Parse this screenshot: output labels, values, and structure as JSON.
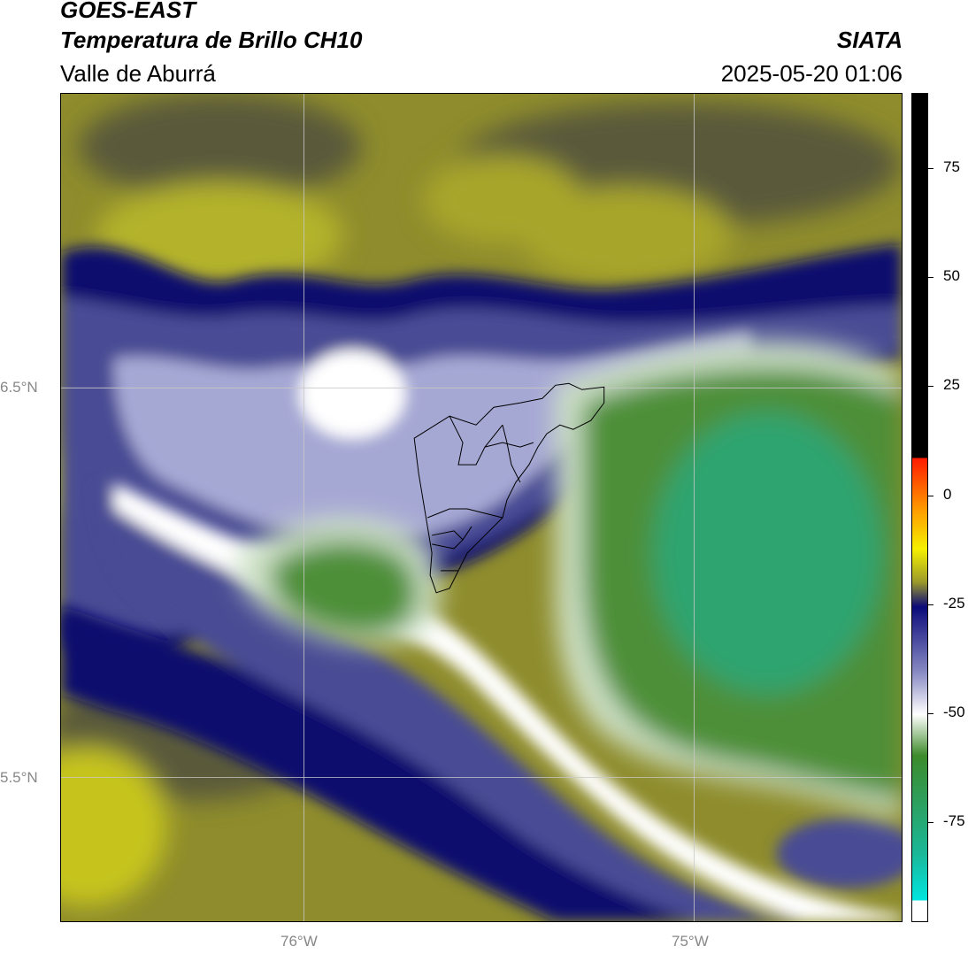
{
  "header": {
    "satellite": "GOES-EAST",
    "product": "Temperatura de Brillo CH10",
    "region": "Valle de Aburrá",
    "agency": "SIATA",
    "datetime": "2025-05-20 01:06"
  },
  "axes": {
    "lat_labels": [
      "6.5°N",
      "5.5°N"
    ],
    "lon_labels": [
      "76°W",
      "75°W"
    ]
  },
  "colorbar": {
    "ticks": [
      "75",
      "50",
      "25",
      "0",
      "-25",
      "-50",
      "-75"
    ],
    "colors": {
      "black": "#000000",
      "red": "#ff1a00",
      "orange": "#ff9600",
      "yellow": "#f5f000",
      "olive": "#9c9a2a",
      "navy": "#0a0a7a",
      "white": "#ffffff",
      "green": "#3d8a2a",
      "teal": "#1ab89a",
      "cyan": "#00e6e0"
    }
  },
  "map": {
    "colors": {
      "olive_dark": "#5a5a3a",
      "olive": "#8e8c2c",
      "olive_light": "#b4b22a",
      "navy": "#10106e",
      "slate": "#4a4c94",
      "lavender": "#a6a8d4",
      "white": "#ffffff",
      "pale_green": "#cfe2c8",
      "green": "#4d8f38",
      "sea_green": "#2ea470",
      "boundary": "#000000"
    }
  }
}
